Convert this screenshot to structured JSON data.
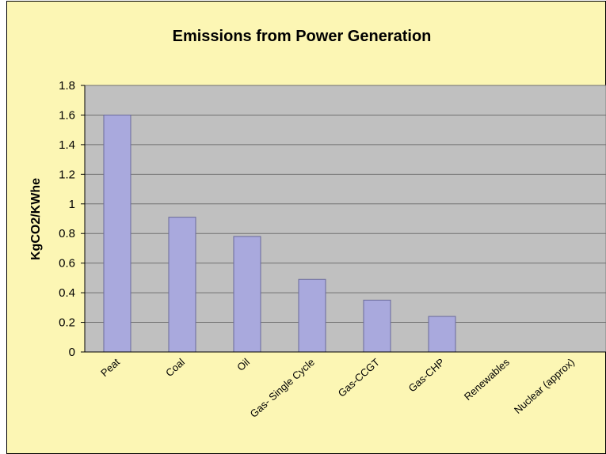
{
  "chart_data": {
    "type": "bar",
    "title": "Emissions from Power Generation",
    "y_label": "KgCO2/KWhe",
    "categories": [
      "Peat",
      "Coal",
      "Oil",
      "Gas- Single Cycle",
      "Gas-CCGT",
      "Gas-CHP",
      "Renewables",
      "Nuclear (approx)"
    ],
    "values": [
      1.6,
      0.91,
      0.78,
      0.49,
      0.35,
      0.24,
      0,
      0
    ],
    "color": "#a9a9dd",
    "ylim": [
      0,
      1.8
    ],
    "yticks": [
      0,
      0.2,
      0.4,
      0.6,
      0.8,
      1,
      1.2,
      1.4,
      1.6,
      1.8
    ],
    "grid": true
  }
}
